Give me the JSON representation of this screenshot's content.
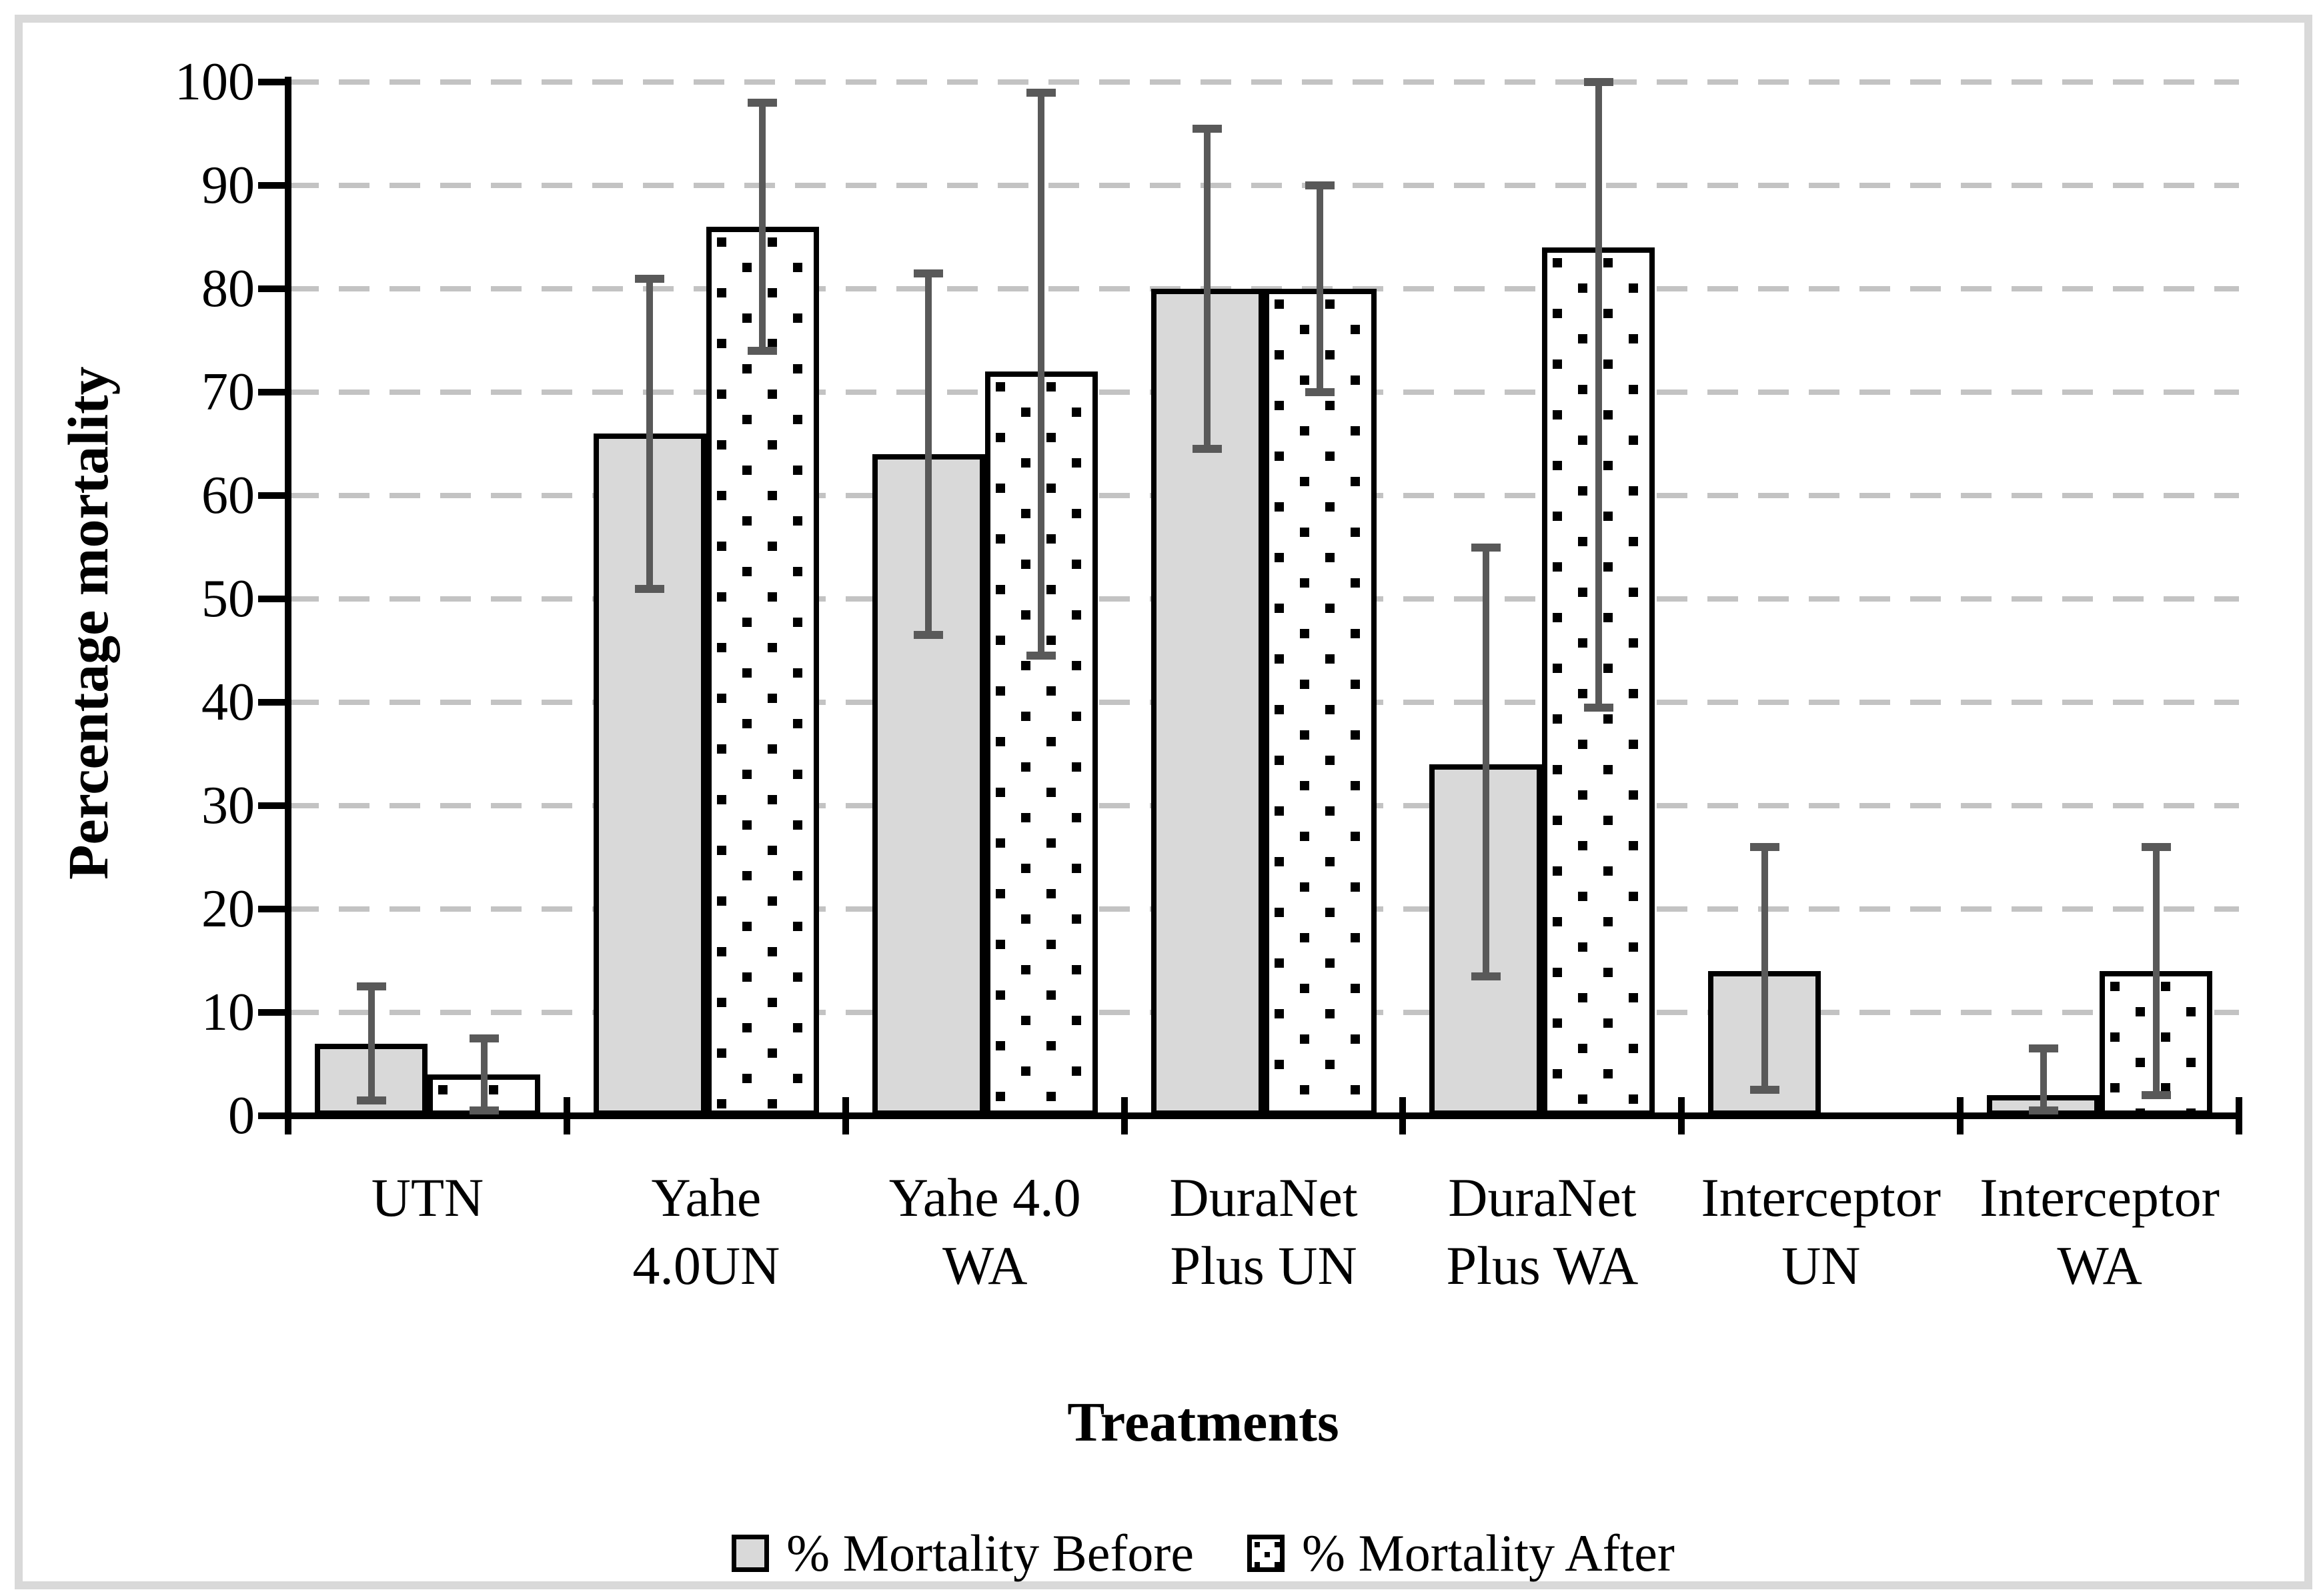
{
  "figure": {
    "border_color": "#d9d9d9",
    "background": "#ffffff"
  },
  "chart_data": {
    "type": "bar",
    "title": "",
    "xlabel": "Treatments",
    "ylabel": "Percentage mortality",
    "ylim": [
      0,
      100
    ],
    "yticks": [
      0,
      10,
      20,
      30,
      40,
      50,
      60,
      70,
      80,
      90,
      100
    ],
    "grid": "horizontal-dashed",
    "legend_position": "bottom-center",
    "error_bars": true,
    "categories": [
      "UTN",
      "Yahe 4.0UN",
      "Yahe 4.0 WA",
      "DuraNet Plus UN",
      "DuraNet Plus WA",
      "Interceptor UN",
      "Interceptor WA"
    ],
    "category_label_lines": [
      [
        "UTN"
      ],
      [
        "Yahe",
        "4.0UN"
      ],
      [
        "Yahe 4.0",
        "WA"
      ],
      [
        "DuraNet",
        "Plus UN"
      ],
      [
        "DuraNet",
        "Plus WA"
      ],
      [
        "Interceptor",
        "UN"
      ],
      [
        "Interceptor",
        "WA"
      ]
    ],
    "series": [
      {
        "name": "% Mortality Before",
        "style": "solid-gray",
        "values": [
          7,
          66,
          64,
          80,
          34,
          14,
          2
        ],
        "error_low": [
          1.5,
          51,
          46.5,
          64.5,
          13.5,
          2.5,
          0.5
        ],
        "error_high": [
          12.5,
          81,
          81.5,
          95.5,
          55,
          26,
          6.5
        ]
      },
      {
        "name": "% Mortality After",
        "style": "white-dotted-pattern",
        "values": [
          4,
          86,
          72,
          80,
          84,
          0,
          14
        ],
        "error_low": [
          0.5,
          74,
          44.5,
          70,
          39.5,
          null,
          2
        ],
        "error_high": [
          7.5,
          98,
          99,
          90,
          100,
          null,
          26
        ]
      }
    ],
    "colors": {
      "bar_fill_before": "#d9d9d9",
      "bar_fill_after": "#ffffff",
      "bar_border": "#000000",
      "dot_pattern": "#000000",
      "error_bar": "#595959",
      "gridline": "#c3c3c3",
      "axis": "#000000",
      "text": "#000000"
    }
  }
}
